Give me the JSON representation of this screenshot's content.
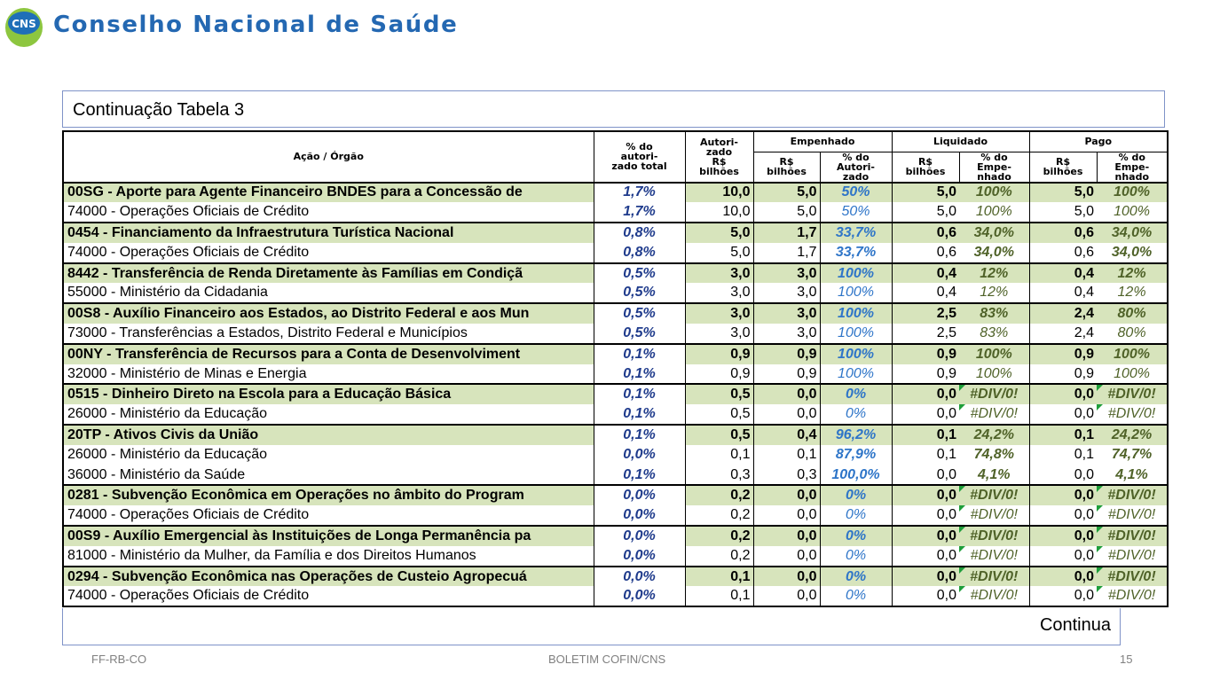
{
  "brand": "Conselho Nacional de Saúde",
  "logo_text": "CNS",
  "table_title": "Continuação Tabela 3",
  "continue_label": "Continua",
  "footer": {
    "left": "FF-RB-CO",
    "center": "BOLETIM COFIN/CNS",
    "page": "15"
  },
  "headers": {
    "acao": "Ação / Órgão",
    "share_l1": "% do",
    "share_l2": "autori-",
    "share_l3": "zado total",
    "aut_l1": "Autori-",
    "aut_l2": "zado",
    "aut_l3": "R$",
    "aut_l4": "bilhões",
    "empenhado": "Empenhado",
    "liquidado": "Liquidado",
    "pago": "Pago",
    "rs_l1": "R$",
    "rs_l2": "bilhões",
    "emp_pct_l1": "% do",
    "emp_pct_l2": "Autori-",
    "emp_pct_l3": "zado",
    "liq_pct_l1": "% do",
    "liq_pct_l2": "Empe-",
    "liq_pct_l3": "nhado",
    "pag_pct_l1": "% do",
    "pag_pct_l2": "Empe-",
    "pag_pct_l3": "nhado"
  },
  "rows": [
    {
      "type": "grp",
      "name": "00SG - Aporte para Agente Financeiro BNDES para a Concessão de",
      "share": "1,7%",
      "aut": "10,0",
      "emp": "5,0",
      "emp_pct": "50%",
      "liq": "5,0",
      "liq_pct": "100%",
      "pag": "5,0",
      "pag_pct": "100%"
    },
    {
      "type": "sub",
      "name": "74000 - Operações Oficiais de Crédito",
      "share": "1,7%",
      "aut": "10,0",
      "emp": "5,0",
      "emp_pct": "50%",
      "liq": "5,0",
      "liq_pct": "100%",
      "pag": "5,0",
      "pag_pct": "100%"
    },
    {
      "type": "grp",
      "name": "0454 - Financiamento da Infraestrutura Turística Nacional",
      "share": "0,8%",
      "aut": "5,0",
      "emp": "1,7",
      "emp_pct": "33,7%",
      "liq": "0,6",
      "liq_pct": "34,0%",
      "pag": "0,6",
      "pag_pct": "34,0%"
    },
    {
      "type": "sub",
      "name": "74000 - Operações Oficiais de Crédito",
      "share": "0,8%",
      "aut": "5,0",
      "emp": "1,7",
      "emp_pct": "33,7%",
      "liq": "0,6",
      "liq_pct": "34,0%",
      "pag": "0,6",
      "pag_pct": "34,0%",
      "bold": true
    },
    {
      "type": "grp",
      "name": "8442 - Transferência de Renda Diretamente às Famílias em Condiçã",
      "share": "0,5%",
      "aut": "3,0",
      "emp": "3,0",
      "emp_pct": "100%",
      "liq": "0,4",
      "liq_pct": "12%",
      "pag": "0,4",
      "pag_pct": "12%"
    },
    {
      "type": "sub",
      "name": "55000 - Ministério da Cidadania",
      "share": "0,5%",
      "aut": "3,0",
      "emp": "3,0",
      "emp_pct": "100%",
      "liq": "0,4",
      "liq_pct": "12%",
      "pag": "0,4",
      "pag_pct": "12%"
    },
    {
      "type": "grp",
      "name": "00S8 - Auxílio Financeiro aos Estados, ao Distrito Federal e aos Mun",
      "share": "0,5%",
      "aut": "3,0",
      "emp": "3,0",
      "emp_pct": "100%",
      "liq": "2,5",
      "liq_pct": "83%",
      "pag": "2,4",
      "pag_pct": "80%"
    },
    {
      "type": "sub",
      "name": "73000 - Transferências a Estados, Distrito Federal e Municípios",
      "share": "0,5%",
      "aut": "3,0",
      "emp": "3,0",
      "emp_pct": "100%",
      "liq": "2,5",
      "liq_pct": "83%",
      "pag": "2,4",
      "pag_pct": "80%"
    },
    {
      "type": "grp",
      "name": "00NY - Transferência de Recursos para a Conta de Desenvolviment",
      "share": "0,1%",
      "aut": "0,9",
      "emp": "0,9",
      "emp_pct": "100%",
      "liq": "0,9",
      "liq_pct": "100%",
      "pag": "0,9",
      "pag_pct": "100%"
    },
    {
      "type": "sub",
      "name": "32000 - Ministério de Minas e Energia",
      "share": "0,1%",
      "aut": "0,9",
      "emp": "0,9",
      "emp_pct": "100%",
      "liq": "0,9",
      "liq_pct": "100%",
      "pag": "0,9",
      "pag_pct": "100%"
    },
    {
      "type": "grp",
      "name": "0515 - Dinheiro Direto na Escola para a Educação Básica",
      "share": "0,1%",
      "aut": "0,5",
      "emp": "0,0",
      "emp_pct": "0%",
      "liq": "0,0",
      "liq_pct": "#DIV/0!",
      "pag": "0,0",
      "pag_pct": "#DIV/0!",
      "err": true
    },
    {
      "type": "sub",
      "name": "26000 - Ministério da Educação",
      "share": "0,1%",
      "aut": "0,5",
      "emp": "0,0",
      "emp_pct": "0%",
      "liq": "0,0",
      "liq_pct": "#DIV/0!",
      "pag": "0,0",
      "pag_pct": "#DIV/0!",
      "err": true
    },
    {
      "type": "grp",
      "name": "20TP - Ativos Civis da União",
      "share": "0,1%",
      "aut": "0,5",
      "emp": "0,4",
      "emp_pct": "96,2%",
      "liq": "0,1",
      "liq_pct": "24,2%",
      "pag": "0,1",
      "pag_pct": "24,2%"
    },
    {
      "type": "sub",
      "name": "26000 - Ministério da Educação",
      "share": "0,0%",
      "aut": "0,1",
      "emp": "0,1",
      "emp_pct": "87,9%",
      "liq": "0,1",
      "liq_pct": "74,8%",
      "pag": "0,1",
      "pag_pct": "74,7%",
      "bold": true
    },
    {
      "type": "sub",
      "name": "36000 - Ministério da Saúde",
      "share": "0,1%",
      "aut": "0,3",
      "emp": "0,3",
      "emp_pct": "100,0%",
      "liq": "0,0",
      "liq_pct": "4,1%",
      "pag": "0,0",
      "pag_pct": "4,1%",
      "bold": true
    },
    {
      "type": "grp",
      "name": "0281 - Subvenção Econômica em Operações no âmbito do Program",
      "share": "0,0%",
      "aut": "0,2",
      "emp": "0,0",
      "emp_pct": "0%",
      "liq": "0,0",
      "liq_pct": "#DIV/0!",
      "pag": "0,0",
      "pag_pct": "#DIV/0!",
      "err": true
    },
    {
      "type": "sub",
      "name": "74000 - Operações Oficiais de Crédito",
      "share": "0,0%",
      "aut": "0,2",
      "emp": "0,0",
      "emp_pct": "0%",
      "liq": "0,0",
      "liq_pct": "#DIV/0!",
      "pag": "0,0",
      "pag_pct": "#DIV/0!",
      "err": true
    },
    {
      "type": "grp",
      "name": "00S9 - Auxílio Emergencial às Instituições de Longa Permanência pa",
      "share": "0,0%",
      "aut": "0,2",
      "emp": "0,0",
      "emp_pct": "0%",
      "liq": "0,0",
      "liq_pct": "#DIV/0!",
      "pag": "0,0",
      "pag_pct": "#DIV/0!",
      "err": true
    },
    {
      "type": "sub",
      "name": "81000 - Ministério da Mulher, da Família e dos Direitos Humanos",
      "share": "0,0%",
      "aut": "0,2",
      "emp": "0,0",
      "emp_pct": "0%",
      "liq": "0,0",
      "liq_pct": "#DIV/0!",
      "pag": "0,0",
      "pag_pct": "#DIV/0!",
      "err": true
    },
    {
      "type": "grp",
      "name": "0294 - Subvenção Econômica nas Operações de Custeio Agropecuá",
      "share": "0,0%",
      "aut": "0,1",
      "emp": "0,0",
      "emp_pct": "0%",
      "liq": "0,0",
      "liq_pct": "#DIV/0!",
      "pag": "0,0",
      "pag_pct": "#DIV/0!",
      "err": true
    },
    {
      "type": "sub",
      "name": "74000 - Operações Oficiais de Crédito",
      "share": "0,0%",
      "aut": "0,1",
      "emp": "0,0",
      "emp_pct": "0%",
      "liq": "0,0",
      "liq_pct": "#DIV/0!",
      "pag": "0,0",
      "pag_pct": "#DIV/0!",
      "err": true
    }
  ]
}
